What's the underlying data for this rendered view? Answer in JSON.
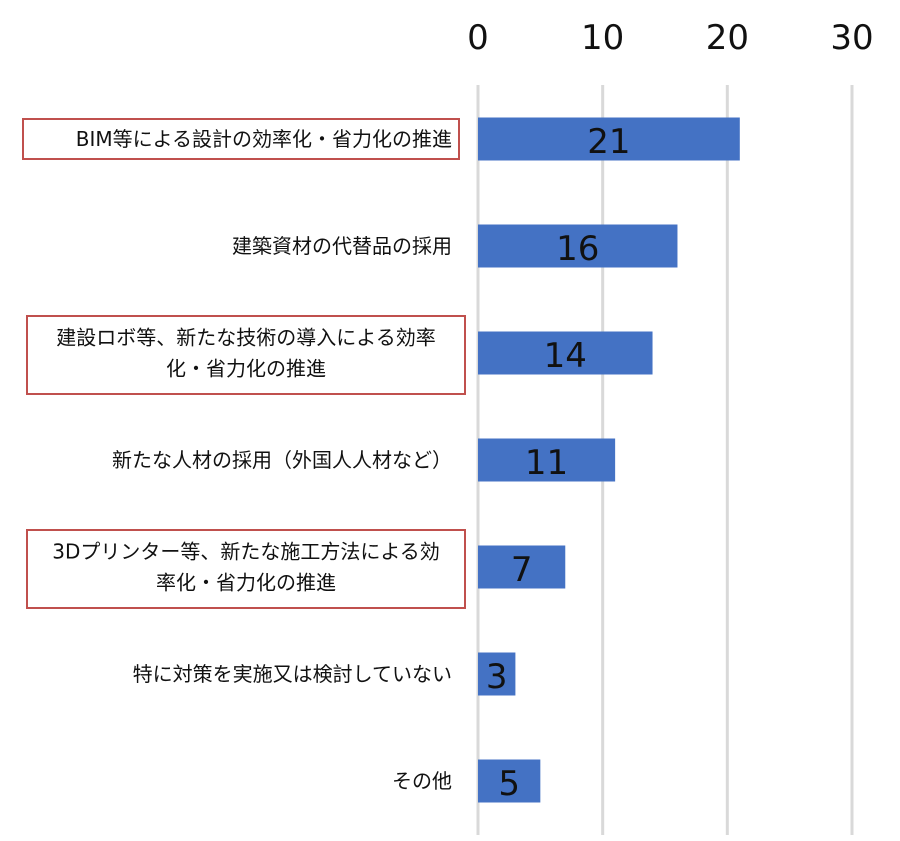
{
  "chart_data": {
    "type": "bar",
    "orientation": "horizontal",
    "title": "",
    "xlabel": "",
    "ylabel": "",
    "xlim": [
      0,
      30
    ],
    "x_ticks": [
      "0",
      "10",
      "20",
      "30"
    ],
    "x_axis_position": "top",
    "grid": true,
    "legend": "none",
    "bar_color": "#4472c4",
    "highlight_color": "#c0504d",
    "categories": [
      [
        "BIM等による設計の効率化・省力化の推進"
      ],
      [
        "建築資材の代替品の採用"
      ],
      [
        "建設ロボ等、新たな技術の導入による効率",
        "化・省力化の推進"
      ],
      [
        "新たな人材の採用（外国人人材など）"
      ],
      [
        "3Dプリンター等、新たな施工方法による効",
        "率化・省力化の推進"
      ],
      [
        "特に対策を実施又は検討していない"
      ],
      [
        "その他"
      ]
    ],
    "values": [
      21,
      16,
      14,
      11,
      7,
      3,
      5
    ],
    "data_labels": [
      "21",
      "16",
      "14",
      "11",
      "7",
      "3",
      "5"
    ],
    "highlighted": [
      true,
      false,
      true,
      false,
      true,
      false,
      false
    ]
  }
}
